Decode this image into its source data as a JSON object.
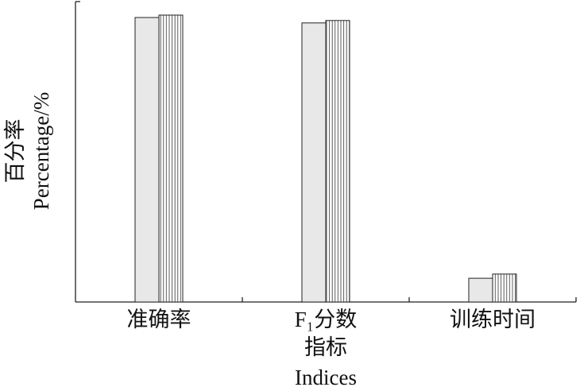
{
  "chart_data": {
    "type": "bar",
    "x_label": [
      "指标",
      "Indices"
    ],
    "y_label": [
      "百分率",
      "Percentage/%"
    ],
    "categories": [
      "准确率",
      "F₁分数",
      "训练时间"
    ],
    "series": [
      {
        "color": "#e8e8e8",
        "values": [
          94.7,
          92.9,
          7.9
        ]
      },
      {
        "color": "#ffffff",
        "hatch": "vertical",
        "values": [
          95.5,
          93.7,
          9.3
        ]
      }
    ],
    "ylim": [
      0,
      100
    ]
  }
}
